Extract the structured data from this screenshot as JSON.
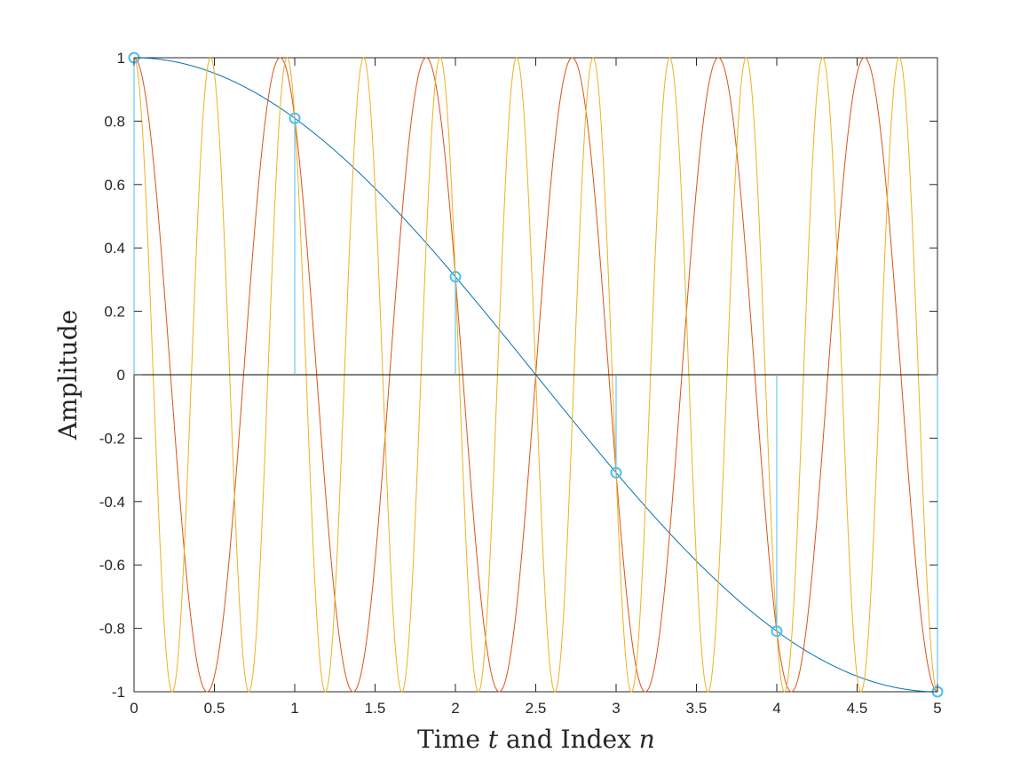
{
  "chart_data": {
    "type": "line",
    "title": "",
    "xlabel": {
      "pre": "Time ",
      "var1": "t",
      "mid": " and Index ",
      "var2": "n"
    },
    "ylabel": "Amplitude",
    "xlim": [
      0,
      5
    ],
    "ylim": [
      -1,
      1
    ],
    "xticks": [
      "0",
      "0.5",
      "1",
      "1.5",
      "2",
      "2.5",
      "3",
      "3.5",
      "4",
      "4.5",
      "5"
    ],
    "yticks": [
      "1",
      "0.8",
      "0.6",
      "0.4",
      "0.2",
      "0",
      "-0.2",
      "-0.4",
      "-0.6",
      "-0.8",
      "-1"
    ],
    "grid": false,
    "legend": "none",
    "series": [
      {
        "kind": "cosine",
        "frequency": 0.1,
        "color": "#0072BD"
      },
      {
        "kind": "cosine",
        "frequency": 1.1,
        "color": "#D95319"
      },
      {
        "kind": "cosine",
        "frequency": 2.1,
        "color": "#EDB120"
      },
      {
        "kind": "stem",
        "color": "#4DBEEE",
        "x": [
          0,
          1,
          2,
          3,
          4,
          5
        ],
        "y": [
          1,
          0.809,
          0.309,
          -0.309,
          -0.809,
          -1
        ]
      }
    ],
    "baseline": 0
  }
}
